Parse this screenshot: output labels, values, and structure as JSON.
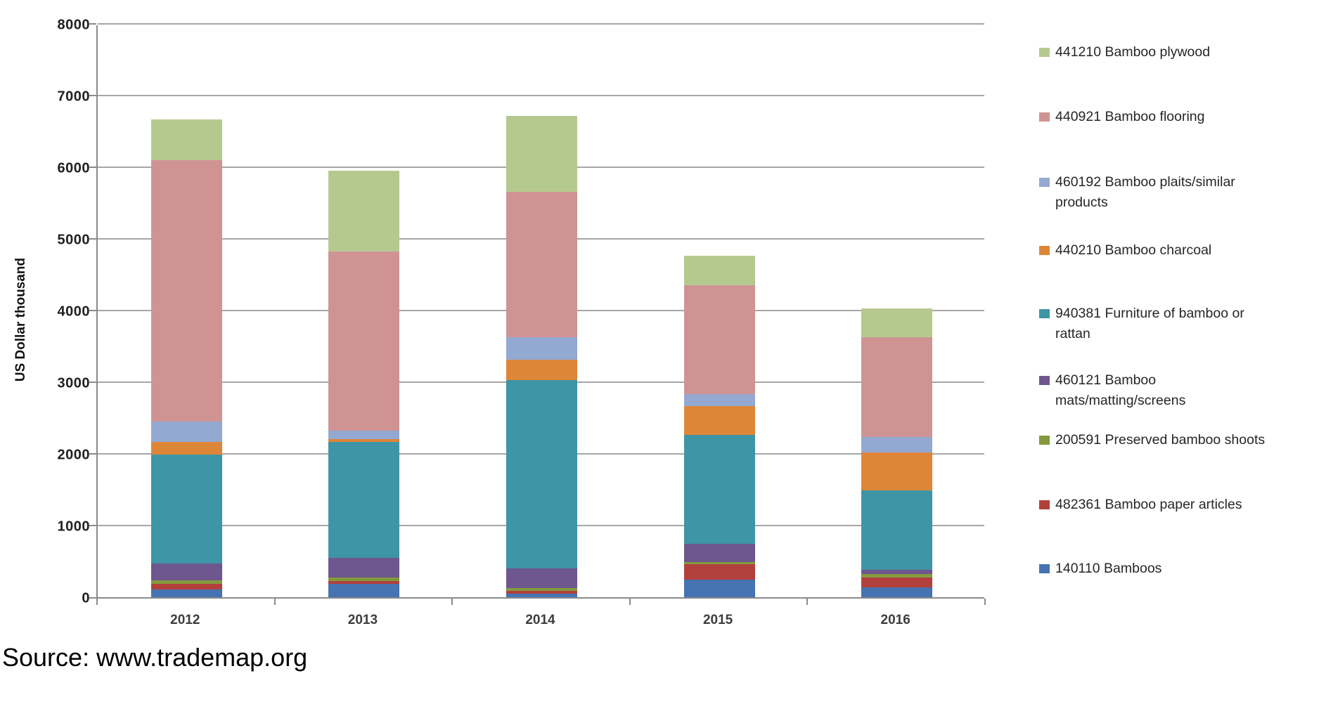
{
  "chart_data": {
    "type": "bar",
    "subtype": "stacked-column",
    "title": "",
    "ylabel": "US Dollar thousand",
    "ylim": [
      0,
      8000
    ],
    "y_ticks": [
      0,
      1000,
      2000,
      3000,
      4000,
      5000,
      6000,
      7000,
      8000
    ],
    "grid": "horizontal",
    "legend_position": "right",
    "categories": [
      "2012",
      "2013",
      "2014",
      "2015",
      "2016"
    ],
    "series_bottom_to_top": [
      {
        "name": "140110 Bamboos",
        "color": "#4673b2",
        "values": [
          110,
          185,
          45,
          250,
          135
        ]
      },
      {
        "name": "482361 Bamboo paper articles",
        "color": "#b2403d",
        "values": [
          75,
          40,
          40,
          210,
          140
        ]
      },
      {
        "name": "200591 Preserved bamboo shoots",
        "color": "#84993d",
        "values": [
          55,
          45,
          40,
          30,
          45
        ]
      },
      {
        "name": "460121 Bamboo mats/matting/screens",
        "color": "#6e568e",
        "values": [
          235,
          280,
          280,
          260,
          60
        ]
      },
      {
        "name": "940381 Furniture of bamboo or rattan",
        "color": "#3e95a6",
        "values": [
          1515,
          1620,
          2625,
          1520,
          1110
        ]
      },
      {
        "name": "440210 Bamboo charcoal",
        "color": "#de8638",
        "values": [
          180,
          40,
          285,
          400,
          530
        ]
      },
      {
        "name": "460192 Bamboo plaits/similar products",
        "color": "#93a9d2",
        "values": [
          280,
          110,
          315,
          160,
          220
        ]
      },
      {
        "name": "440921 Bamboo flooring",
        "color": "#d09394",
        "values": [
          3650,
          2500,
          2025,
          1520,
          1390
        ]
      },
      {
        "name": "441210 Bamboo plywood",
        "color": "#b5c98f",
        "values": [
          570,
          1130,
          1065,
          420,
          400
        ]
      }
    ],
    "totals": [
      6670,
      5950,
      6720,
      4770,
      4030
    ],
    "legend_top_to_bottom": [
      "441210 Bamboo plywood",
      "440921 Bamboo flooring",
      "460192 Bamboo plaits/similar products",
      "440210 Bamboo charcoal",
      "940381 Furniture of bamboo or rattan",
      "460121 Bamboo mats/matting/screens",
      "200591 Preserved bamboo shoots",
      "482361 Bamboo paper articles",
      "140110 Bamboos"
    ]
  },
  "source_note": "Source: www.trademap.org"
}
